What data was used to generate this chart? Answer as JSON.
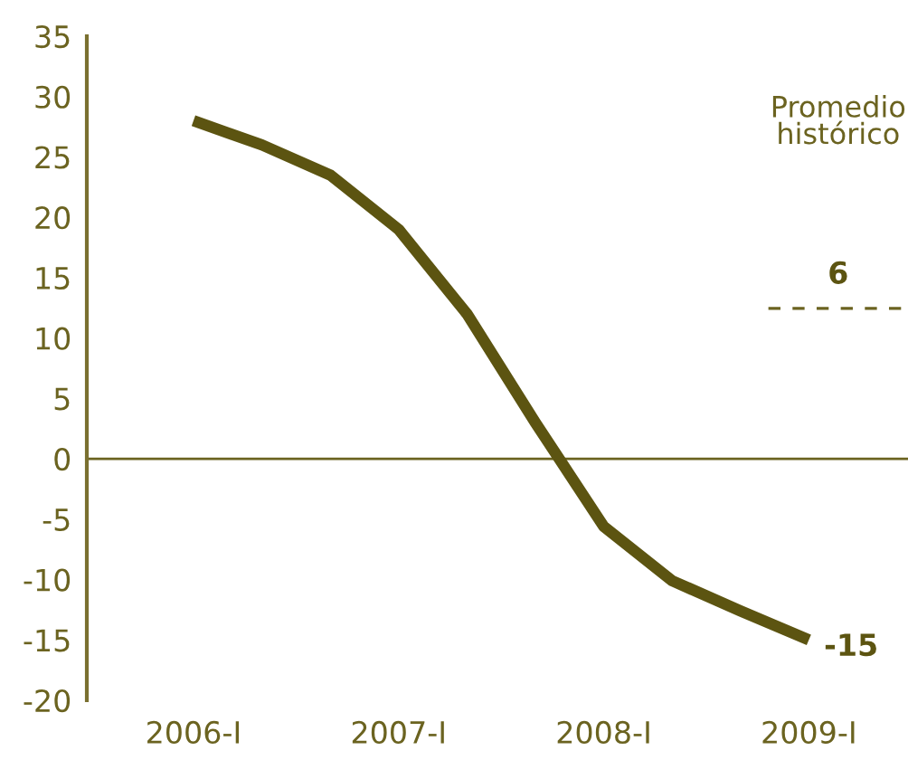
{
  "chart_data": {
    "type": "line",
    "categories": [
      "2006-I",
      null,
      null,
      "2007-I",
      null,
      null,
      "2008-I",
      null,
      null,
      "2009-I"
    ],
    "series": [
      {
        "color": "#5c5411",
        "values": [
          28,
          26,
          23.5,
          19,
          12,
          3,
          -5.6,
          -10.1,
          -12.6,
          -15
        ],
        "value_labels": [
          null,
          null,
          null,
          null,
          null,
          null,
          null,
          null,
          null,
          "-15"
        ]
      }
    ],
    "ylim": [
      -20,
      35
    ],
    "yticks": [
      -20,
      -15,
      -10,
      -5,
      0,
      5,
      10,
      15,
      20,
      25,
      30,
      35
    ],
    "ref_lines": [
      {
        "axis": "y",
        "value": 0,
        "color": "#6b6320",
        "line_style": "solid"
      }
    ],
    "annotations": [
      "Promedio histórico",
      "6"
    ],
    "grid": false,
    "legend": false,
    "marker": "none",
    "line_style": "solid"
  }
}
